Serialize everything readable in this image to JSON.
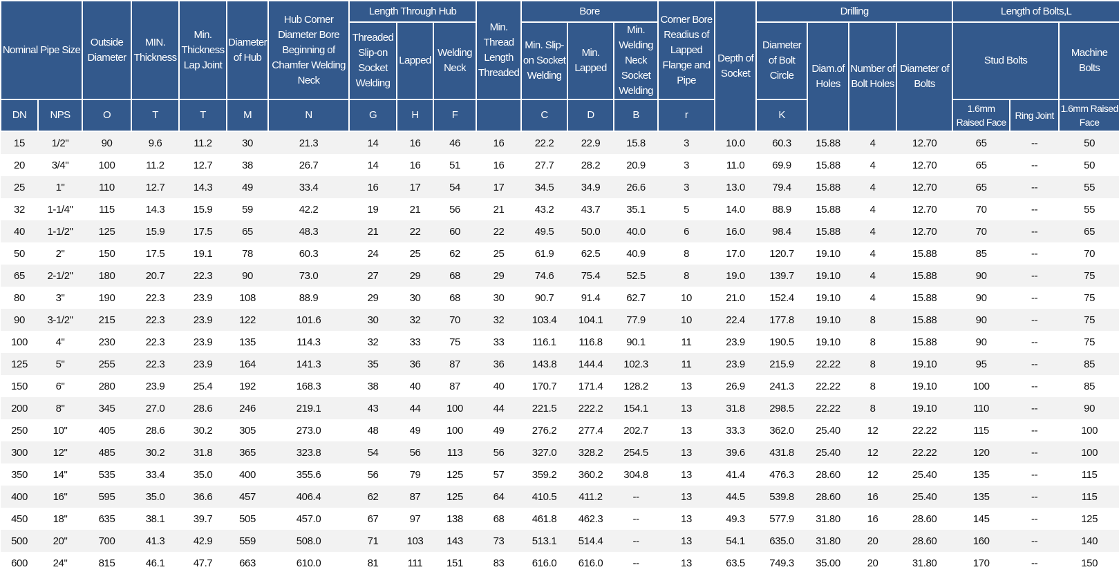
{
  "header": {
    "row1": [
      "Nominal  Pipe Size",
      "Outside Diameter",
      "MIN. Thickness",
      "Min. Thickness Lap Joint",
      "Diameter of Hub",
      "Hub Corner Diameter Bore Beginning of Chamfer Welding Neck",
      "Length Through Hub",
      "Min. Thread Length Threaded",
      "Bore",
      "Corner Bore Readius of Lapped Flange and Pipe",
      "Depth of Socket",
      "Drilling",
      "Length of Bolts,L"
    ],
    "row2": [
      "Threaded Slip-on Socket Welding",
      "Lapped",
      "Welding Neck",
      "Min. Slip-on Socket Welding",
      "Min. Lapped",
      "Min. Welding Neck Socket Welding",
      "Diameter of Bolt Circle",
      "Diam.of Holes",
      "Number of Bolt Holes",
      "Diameter of Bolts",
      "Stud Bolts",
      "Machine Bolts"
    ],
    "row3": [
      "DN",
      "NPS",
      "O",
      "T",
      "T",
      "M",
      "N",
      "G",
      "H",
      "F",
      "C",
      "D",
      "B",
      "r",
      "K",
      "1.6mm Raised Face",
      "Ring Joint",
      "1.6mm Raised Face"
    ]
  },
  "table": {
    "rows": [
      [
        "15",
        "1/2\"",
        "90",
        "9.6",
        "11.2",
        "30",
        "21.3",
        "14",
        "16",
        "46",
        "16",
        "22.2",
        "22.9",
        "15.8",
        "3",
        "10.0",
        "60.3",
        "15.88",
        "4",
        "12.70",
        "65",
        "--",
        "50"
      ],
      [
        "20",
        "3/4\"",
        "100",
        "11.2",
        "12.7",
        "38",
        "26.7",
        "14",
        "16",
        "51",
        "16",
        "27.7",
        "28.2",
        "20.9",
        "3",
        "11.0",
        "69.9",
        "15.88",
        "4",
        "12.70",
        "65",
        "--",
        "50"
      ],
      [
        "25",
        "1\"",
        "110",
        "12.7",
        "14.3",
        "49",
        "33.4",
        "16",
        "17",
        "54",
        "17",
        "34.5",
        "34.9",
        "26.6",
        "3",
        "13.0",
        "79.4",
        "15.88",
        "4",
        "12.70",
        "65",
        "--",
        "55"
      ],
      [
        "32",
        "1-1/4\"",
        "115",
        "14.3",
        "15.9",
        "59",
        "42.2",
        "19",
        "21",
        "56",
        "21",
        "43.2",
        "43.7",
        "35.1",
        "5",
        "14.0",
        "88.9",
        "15.88",
        "4",
        "12.70",
        "70",
        "--",
        "55"
      ],
      [
        "40",
        "1-1/2\"",
        "125",
        "15.9",
        "17.5",
        "65",
        "48.3",
        "21",
        "22",
        "60",
        "22",
        "49.5",
        "50.0",
        "40.0",
        "6",
        "16.0",
        "98.4",
        "15.88",
        "4",
        "12.70",
        "70",
        "--",
        "65"
      ],
      [
        "50",
        "2\"",
        "150",
        "17.5",
        "19.1",
        "78",
        "60.3",
        "24",
        "25",
        "62",
        "25",
        "61.9",
        "62.5",
        "40.9",
        "8",
        "17.0",
        "120.7",
        "19.10",
        "4",
        "15.88",
        "85",
        "--",
        "70"
      ],
      [
        "65",
        "2-1/2\"",
        "180",
        "20.7",
        "22.3",
        "90",
        "73.0",
        "27",
        "29",
        "68",
        "29",
        "74.6",
        "75.4",
        "52.5",
        "8",
        "19.0",
        "139.7",
        "19.10",
        "4",
        "15.88",
        "90",
        "--",
        "75"
      ],
      [
        "80",
        "3\"",
        "190",
        "22.3",
        "23.9",
        "108",
        "88.9",
        "29",
        "30",
        "68",
        "30",
        "90.7",
        "91.4",
        "62.7",
        "10",
        "21.0",
        "152.4",
        "19.10",
        "4",
        "15.88",
        "90",
        "--",
        "75"
      ],
      [
        "90",
        "3-1/2\"",
        "215",
        "22.3",
        "23.9",
        "122",
        "101.6",
        "30",
        "32",
        "70",
        "32",
        "103.4",
        "104.1",
        "77.9",
        "10",
        "22.4",
        "177.8",
        "19.10",
        "8",
        "15.88",
        "90",
        "--",
        "75"
      ],
      [
        "100",
        "4\"",
        "230",
        "22.3",
        "23.9",
        "135",
        "114.3",
        "32",
        "33",
        "75",
        "33",
        "116.1",
        "116.8",
        "90.1",
        "11",
        "23.9",
        "190.5",
        "19.10",
        "8",
        "15.88",
        "90",
        "--",
        "75"
      ],
      [
        "125",
        "5\"",
        "255",
        "22.3",
        "23.9",
        "164",
        "141.3",
        "35",
        "36",
        "87",
        "36",
        "143.8",
        "144.4",
        "102.3",
        "11",
        "23.9",
        "215.9",
        "22.22",
        "8",
        "19.10",
        "95",
        "--",
        "85"
      ],
      [
        "150",
        "6\"",
        "280",
        "23.9",
        "25.4",
        "192",
        "168.3",
        "38",
        "40",
        "87",
        "40",
        "170.7",
        "171.4",
        "128.2",
        "13",
        "26.9",
        "241.3",
        "22.22",
        "8",
        "19.10",
        "100",
        "--",
        "85"
      ],
      [
        "200",
        "8\"",
        "345",
        "27.0",
        "28.6",
        "246",
        "219.1",
        "43",
        "44",
        "100",
        "44",
        "221.5",
        "222.2",
        "154.1",
        "13",
        "31.8",
        "298.5",
        "22.22",
        "8",
        "19.10",
        "110",
        "--",
        "90"
      ],
      [
        "250",
        "10\"",
        "405",
        "28.6",
        "30.2",
        "305",
        "273.0",
        "48",
        "49",
        "100",
        "49",
        "276.2",
        "277.4",
        "202.7",
        "13",
        "33.3",
        "362.0",
        "25.40",
        "12",
        "22.22",
        "115",
        "--",
        "100"
      ],
      [
        "300",
        "12\"",
        "485",
        "30.2",
        "31.8",
        "365",
        "323.8",
        "54",
        "56",
        "113",
        "56",
        "327.0",
        "328.2",
        "254.5",
        "13",
        "39.6",
        "431.8",
        "25.40",
        "12",
        "22.22",
        "120",
        "--",
        "100"
      ],
      [
        "350",
        "14\"",
        "535",
        "33.4",
        "35.0",
        "400",
        "355.6",
        "56",
        "79",
        "125",
        "57",
        "359.2",
        "360.2",
        "304.8",
        "13",
        "41.4",
        "476.3",
        "28.60",
        "12",
        "25.40",
        "135",
        "--",
        "115"
      ],
      [
        "400",
        "16\"",
        "595",
        "35.0",
        "36.6",
        "457",
        "406.4",
        "62",
        "87",
        "125",
        "64",
        "410.5",
        "411.2",
        "--",
        "13",
        "44.5",
        "539.8",
        "28.60",
        "16",
        "25.40",
        "135",
        "--",
        "115"
      ],
      [
        "450",
        "18\"",
        "635",
        "38.1",
        "39.7",
        "505",
        "457.0",
        "67",
        "97",
        "138",
        "68",
        "461.8",
        "462.3",
        "--",
        "13",
        "49.3",
        "577.9",
        "31.80",
        "16",
        "28.60",
        "145",
        "--",
        "125"
      ],
      [
        "500",
        "20\"",
        "700",
        "41.3",
        "42.9",
        "559",
        "508.0",
        "71",
        "103",
        "143",
        "73",
        "513.1",
        "514.4",
        "--",
        "13",
        "54.1",
        "635.0",
        "31.80",
        "20",
        "28.60",
        "160",
        "--",
        "140"
      ],
      [
        "600",
        "24\"",
        "815",
        "46.1",
        "47.7",
        "663",
        "610.0",
        "81",
        "111",
        "151",
        "83",
        "616.0",
        "616.0",
        "--",
        "13",
        "63.5",
        "749.3",
        "35.00",
        "20",
        "31.80",
        "170",
        "--",
        "150"
      ]
    ]
  }
}
